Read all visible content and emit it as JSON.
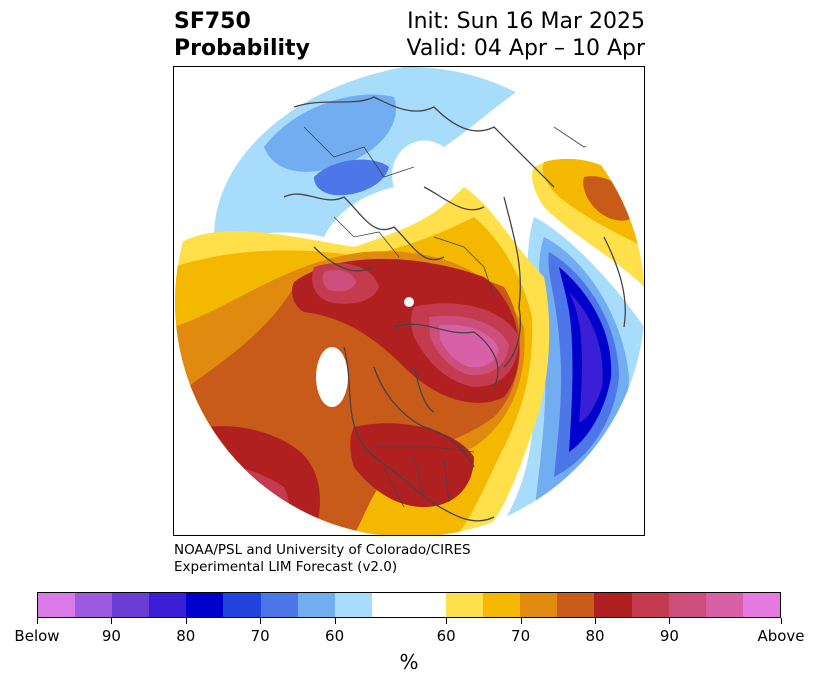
{
  "header": {
    "variable": "SF750",
    "product": "Probability",
    "init": "Init: Sun 16 Mar 2025",
    "valid": "Valid: 04 Apr – 10 Apr"
  },
  "credit": {
    "line1": "NOAA/PSL and University of Colorado/CIRES",
    "line2": "Experimental LIM Forecast (v2.0)"
  },
  "colorbar": {
    "colors": [
      "#d97ae8",
      "#9d5ae0",
      "#6a3dd6",
      "#3a1fd6",
      "#0000cc",
      "#2244dd",
      "#4d77e8",
      "#72adf2",
      "#a8dcfb",
      "#ffffff",
      "#ffffff",
      "#ffe04a",
      "#f4b800",
      "#e08b10",
      "#c85a1a",
      "#b02020",
      "#c43a4e",
      "#cc4e7a",
      "#d860a6",
      "#e67ae0"
    ],
    "tick_labels": [
      "Below",
      "90",
      "80",
      "70",
      "60",
      "60",
      "70",
      "80",
      "90",
      "Above"
    ],
    "unit": "%"
  },
  "map": {
    "projection": "north-polar-stereographic",
    "palette": {
      "above_light": "#ffe04a",
      "above_60": "#f4b800",
      "above_70": "#e08b10",
      "above_75": "#c85a1a",
      "above_80": "#b02020",
      "above_85": "#c43a4e",
      "above_90": "#d860a6",
      "below_light": "#a8dcfb",
      "below_60": "#72adf2",
      "below_70": "#4d77e8",
      "below_80": "#2244dd",
      "below_90": "#0000cc",
      "below_95": "#3a1fd6",
      "below_top": "#6a3dd6"
    }
  }
}
